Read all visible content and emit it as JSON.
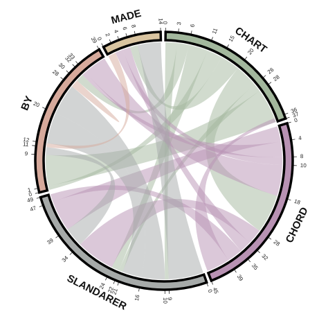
{
  "chart_data": {
    "type": "chord",
    "title": "",
    "segments": [
      {
        "name": "CHART",
        "size": 37,
        "color": "#a3b89d",
        "ticks": [
          0,
          3,
          6,
          11,
          15,
          20,
          26,
          28,
          36,
          37
        ]
      },
      {
        "name": "CHORD",
        "size": 45,
        "color": "#b892b3",
        "ticks": [
          0,
          4,
          8,
          10,
          18,
          28,
          32,
          35,
          39,
          45
        ]
      },
      {
        "name": "SLANDARER",
        "size": 49,
        "color": "#a6aaa9",
        "ticks": [
          0,
          9,
          10,
          16,
          21,
          22,
          24,
          34,
          39,
          47,
          49
        ]
      },
      {
        "name": "BY",
        "size": 39,
        "color": "#d6a99b",
        "ticks": [
          0,
          1,
          9,
          11,
          12,
          20,
          28,
          30,
          32,
          33,
          39
        ]
      },
      {
        "name": "MADE",
        "size": 14,
        "color": "#d9c4a0",
        "ticks": [
          0,
          2,
          4,
          6,
          8,
          14
        ]
      }
    ],
    "ribbons": [
      {
        "source": "CHART",
        "target": "SLANDARER",
        "source_range": [
          0,
          3
        ],
        "target_range": [
          9,
          10
        ]
      },
      {
        "source": "CHART",
        "target": "BY",
        "source_range": [
          3,
          6
        ],
        "target_range": [
          30,
          32
        ]
      },
      {
        "source": "CHART",
        "target": "SLANDARER",
        "source_range": [
          6,
          11
        ],
        "target_range": [
          22,
          24
        ]
      },
      {
        "source": "CHART",
        "target": "BY",
        "source_range": [
          11,
          15
        ],
        "target_range": [
          0,
          1
        ]
      },
      {
        "source": "CHART",
        "target": "MADE",
        "source_range": [
          15,
          20
        ],
        "target_range": [
          6,
          8
        ]
      },
      {
        "source": "CHART",
        "target": "CHORD",
        "source_range": [
          20,
          26
        ],
        "target_range": [
          18,
          28
        ]
      },
      {
        "source": "CHART",
        "target": "SLANDARER",
        "source_range": [
          26,
          28
        ],
        "target_range": [
          21,
          22
        ]
      },
      {
        "source": "CHART",
        "target": "BY",
        "source_range": [
          28,
          37
        ],
        "target_range": [
          1,
          9
        ]
      },
      {
        "source": "CHORD",
        "target": "SLANDARER",
        "source_range": [
          0,
          4
        ],
        "target_range": [
          39,
          47
        ]
      },
      {
        "source": "CHORD",
        "target": "BY",
        "source_range": [
          4,
          8
        ],
        "target_range": [
          32,
          33
        ]
      },
      {
        "source": "CHORD",
        "target": "MADE",
        "source_range": [
          8,
          10
        ],
        "target_range": [
          2,
          4
        ]
      },
      {
        "source": "CHORD",
        "target": "BY",
        "source_range": [
          10,
          18
        ],
        "target_range": [
          33,
          39
        ]
      },
      {
        "source": "CHORD",
        "target": "SLANDARER",
        "source_range": [
          28,
          32
        ],
        "target_range": [
          24,
          34
        ]
      },
      {
        "source": "CHORD",
        "target": "MADE",
        "source_range": [
          32,
          35
        ],
        "target_range": [
          4,
          6
        ]
      },
      {
        "source": "CHORD",
        "target": "SLANDARER",
        "source_range": [
          35,
          39
        ],
        "target_range": [
          47,
          49
        ]
      },
      {
        "source": "CHORD",
        "target": "CHART",
        "source_range": [
          39,
          45
        ],
        "target_range": [
          36,
          37
        ]
      },
      {
        "source": "SLANDARER",
        "target": "MADE",
        "source_range": [
          0,
          9
        ],
        "target_range": [
          8,
          14
        ]
      },
      {
        "source": "SLANDARER",
        "target": "BY",
        "source_range": [
          10,
          16
        ],
        "target_range": [
          20,
          28
        ]
      },
      {
        "source": "SLANDARER",
        "target": "BY",
        "source_range": [
          16,
          21
        ],
        "target_range": [
          12,
          20
        ]
      },
      {
        "source": "SLANDARER",
        "target": "BY",
        "source_range": [
          34,
          39
        ],
        "target_range": [
          9,
          11
        ]
      },
      {
        "source": "BY",
        "target": "MADE",
        "source_range": [
          11,
          12
        ],
        "target_range": [
          0,
          2
        ]
      },
      {
        "source": "BY",
        "target": "BY",
        "source_range": [
          28,
          30
        ],
        "target_range": [
          28,
          30
        ]
      }
    ]
  }
}
